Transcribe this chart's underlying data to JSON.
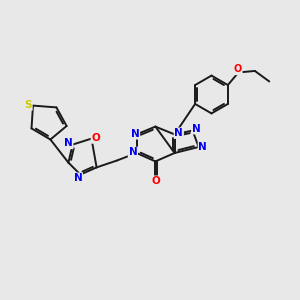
{
  "bg_color": "#e8e8e8",
  "bond_color": "#1a1a1a",
  "bond_width": 1.4,
  "atom_colors": {
    "N": "#0000ee",
    "O": "#ff0000",
    "S": "#cccc00",
    "C": "#1a1a1a"
  },
  "font_size": 7.5
}
